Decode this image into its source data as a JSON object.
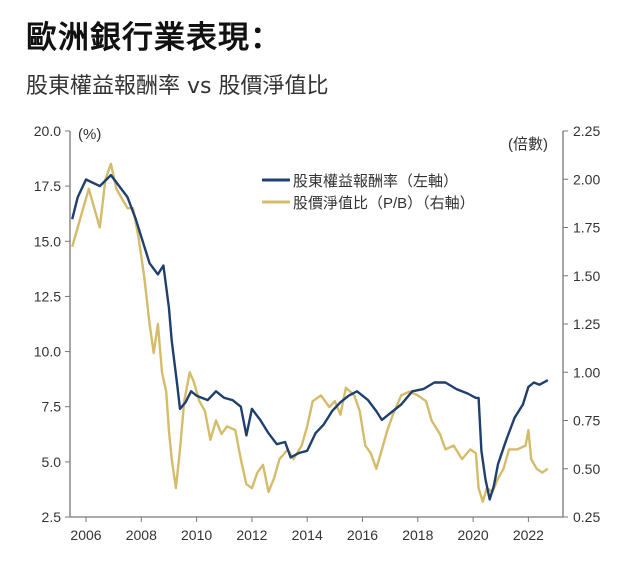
{
  "title": "歐洲銀行業表現：",
  "subtitle": "股東權益報酬率 vs 股價淨值比",
  "chart_data": {
    "type": "line",
    "left_axis": {
      "unit_label": "(%)",
      "range": [
        2.5,
        20.0
      ],
      "ticks": [
        "2.5",
        "5.0",
        "7.5",
        "10.0",
        "12.5",
        "15.0",
        "17.5",
        "20.0"
      ]
    },
    "right_axis": {
      "unit_label": "(倍數)",
      "range": [
        0.25,
        2.25
      ],
      "ticks": [
        "0.25",
        "0.50",
        "0.75",
        "1.00",
        "1.25",
        "1.50",
        "1.75",
        "2.00",
        "2.25"
      ]
    },
    "x_axis": {
      "range": [
        2005.4,
        2023.3
      ],
      "ticks": [
        "2006",
        "2008",
        "2010",
        "2012",
        "2014",
        "2016",
        "2018",
        "2020",
        "2022"
      ]
    },
    "grid": false,
    "legend_placement": "top-right",
    "series": [
      {
        "name": "股東權益報酬率（左軸）",
        "axis": "left",
        "color": "#1f3f6e",
        "x": [
          2005.5,
          2005.7,
          2006.0,
          2006.5,
          2006.9,
          2007.2,
          2007.5,
          2007.8,
          2008.0,
          2008.3,
          2008.6,
          2008.8,
          2009.0,
          2009.1,
          2009.3,
          2009.4,
          2009.6,
          2009.8,
          2010.0,
          2010.4,
          2010.7,
          2011.0,
          2011.3,
          2011.6,
          2011.8,
          2012.0,
          2012.3,
          2012.6,
          2012.9,
          2013.2,
          2013.4,
          2013.7,
          2014.0,
          2014.3,
          2014.6,
          2014.9,
          2015.2,
          2015.5,
          2015.8,
          2016.2,
          2016.5,
          2016.7,
          2017.0,
          2017.4,
          2017.8,
          2018.2,
          2018.6,
          2019.0,
          2019.4,
          2019.8,
          2020.1,
          2020.2,
          2020.3,
          2020.45,
          2020.6,
          2020.75,
          2020.9,
          2021.2,
          2021.5,
          2021.8,
          2022.0,
          2022.2,
          2022.4,
          2022.7
        ],
        "y": [
          16.0,
          17.0,
          17.8,
          17.5,
          18.0,
          17.5,
          17.0,
          16.0,
          15.2,
          14.0,
          13.5,
          13.9,
          12.0,
          10.5,
          8.5,
          7.4,
          7.7,
          8.2,
          8.0,
          7.8,
          8.2,
          7.9,
          7.8,
          7.5,
          6.2,
          7.4,
          6.9,
          6.3,
          5.8,
          5.9,
          5.2,
          5.4,
          5.5,
          6.3,
          6.7,
          7.3,
          7.7,
          8.0,
          8.2,
          7.8,
          7.3,
          6.9,
          7.2,
          7.6,
          8.2,
          8.3,
          8.6,
          8.6,
          8.3,
          8.1,
          7.9,
          7.9,
          5.5,
          4.2,
          3.3,
          3.9,
          4.9,
          6.0,
          7.0,
          7.6,
          8.4,
          8.6,
          8.5,
          8.7
        ]
      },
      {
        "name": "股價淨值比（P/B）（右軸）",
        "axis": "right",
        "color": "#d4bc6a",
        "x": [
          2005.5,
          2005.7,
          2005.9,
          2006.1,
          2006.3,
          2006.5,
          2006.7,
          2006.9,
          2007.1,
          2007.3,
          2007.5,
          2007.7,
          2007.9,
          2008.1,
          2008.3,
          2008.45,
          2008.6,
          2008.75,
          2008.9,
          2009.0,
          2009.1,
          2009.25,
          2009.4,
          2009.55,
          2009.75,
          2009.9,
          2010.1,
          2010.3,
          2010.5,
          2010.7,
          2010.9,
          2011.1,
          2011.4,
          2011.6,
          2011.8,
          2012.0,
          2012.2,
          2012.4,
          2012.6,
          2012.8,
          2013.0,
          2013.3,
          2013.5,
          2013.8,
          2014.0,
          2014.2,
          2014.5,
          2014.8,
          2015.0,
          2015.2,
          2015.4,
          2015.7,
          2015.9,
          2016.1,
          2016.3,
          2016.5,
          2016.7,
          2016.9,
          2017.1,
          2017.4,
          2017.7,
          2018.0,
          2018.3,
          2018.5,
          2018.8,
          2019.0,
          2019.3,
          2019.6,
          2019.9,
          2020.1,
          2020.2,
          2020.35,
          2020.5,
          2020.7,
          2020.9,
          2021.1,
          2021.3,
          2021.6,
          2021.9,
          2022.0,
          2022.1,
          2022.3,
          2022.5,
          2022.7
        ],
        "y": [
          1.65,
          1.75,
          1.85,
          1.95,
          1.85,
          1.75,
          2.0,
          2.08,
          1.95,
          1.9,
          1.85,
          1.85,
          1.7,
          1.5,
          1.25,
          1.1,
          1.25,
          1.0,
          0.9,
          0.7,
          0.55,
          0.4,
          0.6,
          0.85,
          1.0,
          0.95,
          0.85,
          0.8,
          0.65,
          0.75,
          0.68,
          0.72,
          0.7,
          0.55,
          0.42,
          0.4,
          0.48,
          0.52,
          0.38,
          0.45,
          0.55,
          0.6,
          0.55,
          0.62,
          0.72,
          0.85,
          0.88,
          0.82,
          0.85,
          0.78,
          0.92,
          0.88,
          0.8,
          0.62,
          0.58,
          0.5,
          0.6,
          0.7,
          0.78,
          0.88,
          0.9,
          0.88,
          0.85,
          0.75,
          0.68,
          0.6,
          0.62,
          0.55,
          0.6,
          0.58,
          0.4,
          0.33,
          0.4,
          0.38,
          0.45,
          0.5,
          0.6,
          0.6,
          0.62,
          0.7,
          0.55,
          0.5,
          0.48,
          0.5
        ]
      }
    ]
  }
}
